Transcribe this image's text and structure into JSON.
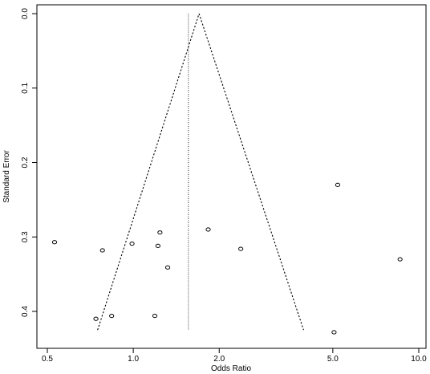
{
  "chart_data": {
    "type": "scatter",
    "xlabel": "Odds Ratio",
    "ylabel": "Standard Error",
    "x_scale": "log",
    "xlim": [
      0.47,
      10.5
    ],
    "ylim": [
      0.0,
      0.445
    ],
    "y_inverted": true,
    "grid": false,
    "x_ticks": [
      {
        "value": 0.5,
        "label": "0.5"
      },
      {
        "value": 1.0,
        "label": "1.0"
      },
      {
        "value": 2.0,
        "label": "2.0"
      },
      {
        "value": 5.0,
        "label": "5.0"
      },
      {
        "value": 10.0,
        "label": "10.0"
      }
    ],
    "y_ticks": [
      {
        "value": 0.0,
        "label": "0.0"
      },
      {
        "value": 0.1,
        "label": "0.1"
      },
      {
        "value": 0.2,
        "label": "0.2"
      },
      {
        "value": 0.3,
        "label": "0.3"
      },
      {
        "value": 0.4,
        "label": "0.4"
      }
    ],
    "points": [
      {
        "x": 0.53,
        "y": 0.307
      },
      {
        "x": 0.78,
        "y": 0.318
      },
      {
        "x": 0.74,
        "y": 0.41
      },
      {
        "x": 0.84,
        "y": 0.406
      },
      {
        "x": 0.99,
        "y": 0.309
      },
      {
        "x": 1.19,
        "y": 0.406
      },
      {
        "x": 1.22,
        "y": 0.312
      },
      {
        "x": 1.24,
        "y": 0.294
      },
      {
        "x": 1.32,
        "y": 0.341
      },
      {
        "x": 1.83,
        "y": 0.29
      },
      {
        "x": 2.38,
        "y": 0.316
      },
      {
        "x": 5.2,
        "y": 0.23
      },
      {
        "x": 5.05,
        "y": 0.428
      },
      {
        "x": 8.6,
        "y": 0.33
      }
    ],
    "pooled_estimate": 1.56,
    "funnel": {
      "apex": {
        "x": 1.7,
        "y": 0.0
      },
      "base_left": {
        "x": 0.75,
        "y": 0.425
      },
      "base_right": {
        "x": 3.95,
        "y": 0.425
      }
    },
    "vline": {
      "x": 1.56,
      "y_from": 0.0,
      "y_to": 0.425
    }
  }
}
